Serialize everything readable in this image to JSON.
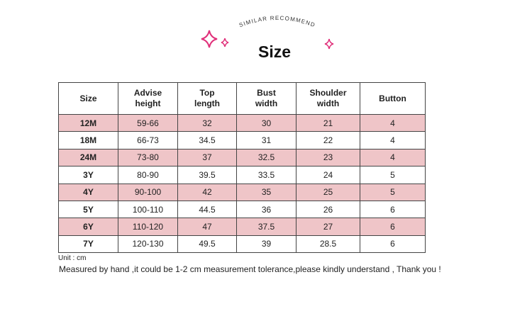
{
  "header": {
    "tagline": "SIMILAR RECOMMEND",
    "title": "Size"
  },
  "table": {
    "columns": [
      "Size",
      "Advise height",
      "Top length",
      "Bust width",
      "Shoulder width",
      "Button"
    ],
    "rows": [
      [
        "12M",
        "59-66",
        "32",
        "30",
        "21",
        "4"
      ],
      [
        "18M",
        "66-73",
        "34.5",
        "31",
        "22",
        "4"
      ],
      [
        "24M",
        "73-80",
        "37",
        "32.5",
        "23",
        "4"
      ],
      [
        "3Y",
        "80-90",
        "39.5",
        "33.5",
        "24",
        "5"
      ],
      [
        "4Y",
        "90-100",
        "42",
        "35",
        "25",
        "5"
      ],
      [
        "5Y",
        "100-110",
        "44.5",
        "36",
        "26",
        "6"
      ],
      [
        "6Y",
        "110-120",
        "47",
        "37.5",
        "27",
        "6"
      ],
      [
        "7Y",
        "120-130",
        "49.5",
        "39",
        "28.5",
        "6"
      ]
    ]
  },
  "notes": {
    "unit": "Unit : cm",
    "tolerance": "Measured by hand ,it could be 1-2 cm measurement tolerance,please kindly understand , Thank you !"
  }
}
